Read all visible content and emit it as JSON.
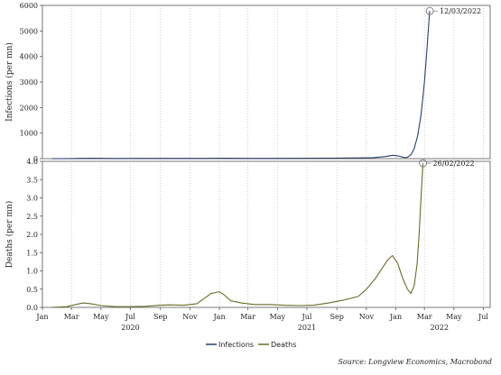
{
  "chart_data": {
    "type": "line",
    "x_axis": {
      "months": [
        "Jan",
        "Mar",
        "May",
        "Jul",
        "Sep",
        "Nov",
        "Jan",
        "Mar",
        "May",
        "Jul",
        "Sep",
        "Nov",
        "Jan",
        "Mar",
        "May",
        "Jul"
      ],
      "years": [
        "2020",
        "2021",
        "2022"
      ],
      "grid": "vertical dotted"
    },
    "panels": [
      {
        "id": "infections",
        "ylabel": "Infections (per mn)",
        "ylim": [
          0,
          6000
        ],
        "yticks": [
          "0",
          "1000",
          "2000",
          "3000",
          "4000",
          "5000",
          "6000"
        ],
        "series_name": "Infections",
        "color": "#2a3f6e",
        "annotation": {
          "label": "12/03/2022",
          "value": 5780
        },
        "points": [
          [
            "2020-01-20",
            0
          ],
          [
            "2020-03-01",
            5
          ],
          [
            "2020-03-20",
            10
          ],
          [
            "2020-04-15",
            15
          ],
          [
            "2020-06-01",
            7
          ],
          [
            "2020-08-01",
            10
          ],
          [
            "2020-10-01",
            10
          ],
          [
            "2020-12-01",
            12
          ],
          [
            "2021-01-01",
            18
          ],
          [
            "2021-03-01",
            12
          ],
          [
            "2021-05-01",
            12
          ],
          [
            "2021-07-01",
            18
          ],
          [
            "2021-09-01",
            22
          ],
          [
            "2021-10-15",
            28
          ],
          [
            "2021-11-15",
            40
          ],
          [
            "2021-12-10",
            80
          ],
          [
            "2021-12-25",
            130
          ],
          [
            "2022-01-05",
            110
          ],
          [
            "2022-01-15",
            60
          ],
          [
            "2022-01-20",
            40
          ],
          [
            "2022-01-25",
            55
          ],
          [
            "2022-02-01",
            150
          ],
          [
            "2022-02-08",
            400
          ],
          [
            "2022-02-15",
            900
          ],
          [
            "2022-02-22",
            1700
          ],
          [
            "2022-03-01",
            3000
          ],
          [
            "2022-03-06",
            4200
          ],
          [
            "2022-03-10",
            5300
          ],
          [
            "2022-03-12",
            5780
          ]
        ]
      },
      {
        "id": "deaths",
        "ylabel": "Deaths (per mn)",
        "ylim": [
          0,
          4.0
        ],
        "yticks": [
          "0.0",
          "0.5",
          "1.0",
          "1.5",
          "2.0",
          "2.5",
          "3.0",
          "3.5",
          "4.0"
        ],
        "series_name": "Deaths",
        "color": "#6b6b2a",
        "annotation": {
          "label": "26/02/2022",
          "value": 3.95
        },
        "points": [
          [
            "2020-01-20",
            0.0
          ],
          [
            "2020-02-20",
            0.02
          ],
          [
            "2020-03-10",
            0.08
          ],
          [
            "2020-03-25",
            0.12
          ],
          [
            "2020-04-10",
            0.1
          ],
          [
            "2020-05-01",
            0.05
          ],
          [
            "2020-06-01",
            0.02
          ],
          [
            "2020-07-01",
            0.02
          ],
          [
            "2020-08-01",
            0.03
          ],
          [
            "2020-09-01",
            0.06
          ],
          [
            "2020-09-20",
            0.07
          ],
          [
            "2020-10-20",
            0.06
          ],
          [
            "2020-11-15",
            0.1
          ],
          [
            "2020-12-01",
            0.25
          ],
          [
            "2020-12-15",
            0.38
          ],
          [
            "2021-01-01",
            0.43
          ],
          [
            "2021-01-10",
            0.35
          ],
          [
            "2021-01-25",
            0.18
          ],
          [
            "2021-02-15",
            0.12
          ],
          [
            "2021-03-15",
            0.08
          ],
          [
            "2021-04-15",
            0.08
          ],
          [
            "2021-05-15",
            0.06
          ],
          [
            "2021-06-15",
            0.05
          ],
          [
            "2021-07-15",
            0.06
          ],
          [
            "2021-08-15",
            0.12
          ],
          [
            "2021-09-15",
            0.2
          ],
          [
            "2021-10-15",
            0.3
          ],
          [
            "2021-11-01",
            0.5
          ],
          [
            "2021-11-20",
            0.8
          ],
          [
            "2021-12-05",
            1.1
          ],
          [
            "2021-12-15",
            1.3
          ],
          [
            "2021-12-25",
            1.42
          ],
          [
            "2022-01-05",
            1.2
          ],
          [
            "2022-01-15",
            0.8
          ],
          [
            "2022-01-25",
            0.5
          ],
          [
            "2022-02-01",
            0.38
          ],
          [
            "2022-02-08",
            0.6
          ],
          [
            "2022-02-14",
            1.2
          ],
          [
            "2022-02-18",
            2.0
          ],
          [
            "2022-02-22",
            3.0
          ],
          [
            "2022-02-26",
            3.95
          ]
        ]
      }
    ],
    "legend": [
      {
        "label": "Infections",
        "color": "#2a3f6e"
      },
      {
        "label": "Deaths",
        "color": "#6b6b2a"
      }
    ],
    "legend_position": "bottom-center",
    "source": "Source: Longview Economics, Macrobond"
  }
}
